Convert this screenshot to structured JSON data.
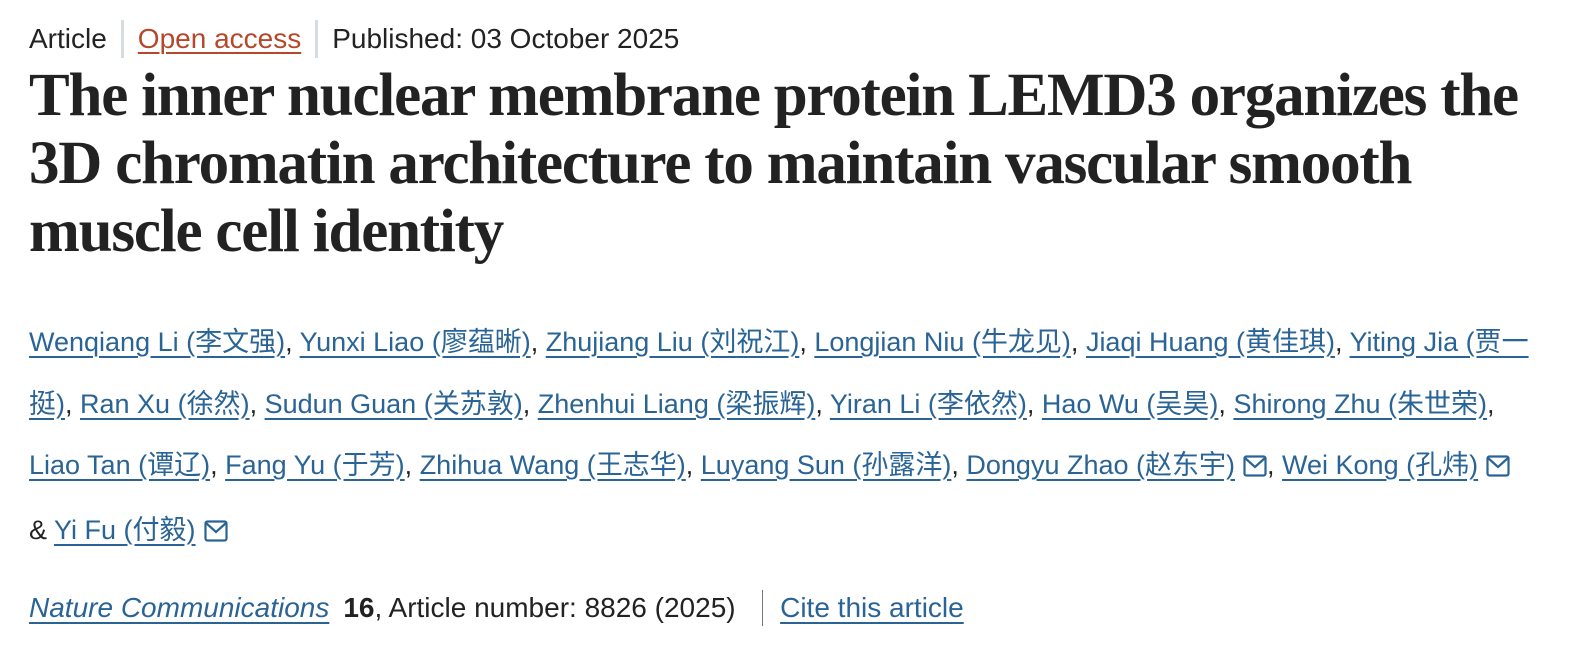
{
  "meta": {
    "article_type": "Article",
    "access": "Open access",
    "published": "Published: 03 October 2025"
  },
  "title": "The inner nuclear membrane protein LEMD3 organizes the 3D chromatin architecture to maintain vascular smooth muscle cell identity",
  "authors": [
    {
      "name": "Wenqiang Li (李文强)"
    },
    {
      "name": "Yunxi Liao (廖蕴晰)"
    },
    {
      "name": "Zhujiang Liu (刘祝江)"
    },
    {
      "name": "Longjian Niu (牛龙见)"
    },
    {
      "name": "Jiaqi Huang (黄佳琪)"
    },
    {
      "name": "Yiting Jia (贾一挺)"
    },
    {
      "name": "Ran Xu (徐然)"
    },
    {
      "name": "Sudun Guan (关苏敦)"
    },
    {
      "name": "Zhenhui Liang (梁振辉)"
    },
    {
      "name": "Yiran Li (李依然)"
    },
    {
      "name": "Hao Wu (吴昊)"
    },
    {
      "name": "Shirong Zhu (朱世荣)"
    },
    {
      "name": "Liao Tan (谭辽)"
    },
    {
      "name": "Fang Yu (于芳)"
    },
    {
      "name": "Zhihua Wang (王志华)"
    },
    {
      "name": "Luyang Sun (孙露洋)"
    },
    {
      "name": "Dongyu Zhao (赵东宇)",
      "corresponding": true
    },
    {
      "name": "Wei Kong (孔炜)",
      "corresponding": true
    },
    {
      "name": "Yi Fu (付毅)",
      "corresponding": true
    }
  ],
  "author_separator": ", ",
  "author_last_separator": " & ",
  "icons": {
    "corresponding": "envelope-icon"
  },
  "citation": {
    "journal": "Nature Communications",
    "volume": "16",
    "article_number": ", Article number: 8826 (2025)",
    "cite_link": "Cite this article"
  },
  "colors": {
    "link": "#2a6496",
    "open_access": "#b5482a",
    "text": "#222222"
  }
}
